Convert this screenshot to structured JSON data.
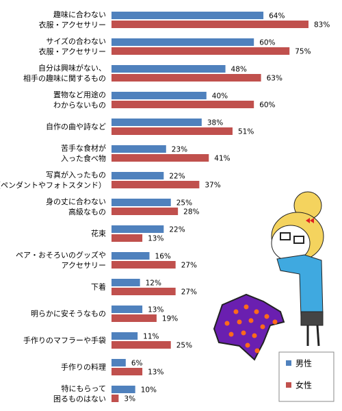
{
  "chart_data": {
    "type": "hbar",
    "categories": [
      "趣味に合わない\n衣服・アクセサリー",
      "サイズの合わない\n衣服・アクセサリー",
      "自分は興味がない、\n相手の趣味に関するもの",
      "置物など用途の\nわからないもの",
      "自作の曲や詩など",
      "苦手な食材が\n入った食べ物",
      "写真が入ったもの\n（ペンダントやフォトスタンド）",
      "身の丈に合わない\n高級なもの",
      "花束",
      "ペア・おそろいのグッズや\nアクセサリー",
      "下着",
      "明らかに安そうなもの",
      "手作りのマフラーや手袋",
      "手作りの料理",
      "特にもらって\n困るものはない"
    ],
    "series": [
      {
        "name": "男性",
        "color": "#4f81bd",
        "values": [
          64,
          60,
          48,
          40,
          38,
          23,
          22,
          25,
          22,
          16,
          12,
          13,
          11,
          6,
          10
        ],
        "value_labels": [
          "64%",
          "60%",
          "48%",
          "40%",
          "38%",
          "23%",
          "22%",
          "25%",
          "22%",
          "16%",
          "12%",
          "13%",
          "11%",
          "6%",
          "10%"
        ]
      },
      {
        "name": "女性",
        "color": "#c0504d",
        "values": [
          83,
          75,
          63,
          60,
          51,
          41,
          37,
          28,
          13,
          27,
          27,
          19,
          25,
          13,
          3
        ],
        "value_labels": [
          "83%",
          "75%",
          "63%",
          "60%",
          "51%",
          "41%",
          "37%",
          "28%",
          "13%",
          "27%",
          "27%",
          "19%",
          "25%",
          "13%",
          "3%"
        ]
      }
    ],
    "legend": "bottom-right"
  }
}
